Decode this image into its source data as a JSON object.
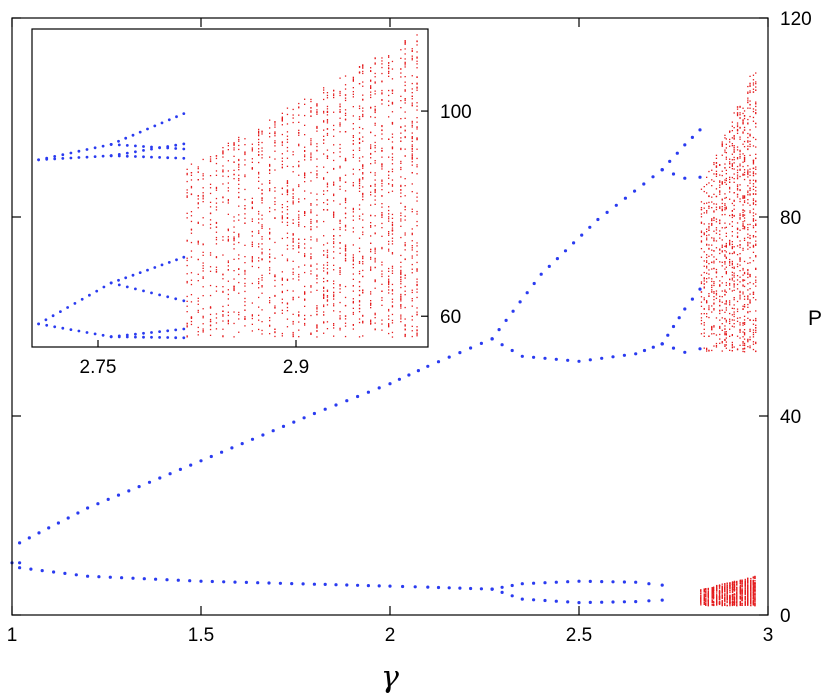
{
  "chart_data": [
    {
      "type": "scatter",
      "title": "",
      "xlabel": "γ",
      "ylabel": "P",
      "xlim": [
        1,
        3
      ],
      "ylim": [
        0,
        120
      ],
      "x_ticks": [
        "1",
        "1.5",
        "2",
        "2.5",
        "3"
      ],
      "y_ticks": [
        "0",
        "40",
        "80",
        "120"
      ],
      "y_axis_side": "right",
      "grid": false,
      "legend": "none",
      "colors": {
        "periodic": "#2a3bf0",
        "chaotic": "#e41a1c"
      },
      "series": [
        {
          "style": "periodic-blue-dots",
          "branches": [
            {
              "x": [
                1.0,
                1.02
              ],
              "y": [
                10.5,
                10.5
              ]
            },
            {
              "x": [
                1.02,
                1.2,
                1.5,
                1.8,
                2.0,
                2.1,
                2.27
              ],
              "y": [
                14.5,
                21.5,
                31.0,
                40.5,
                46.5,
                50.0,
                55.5
              ]
            },
            {
              "x": [
                1.02,
                1.2,
                1.5,
                1.8,
                2.0,
                2.1,
                2.27
              ],
              "y": [
                9.5,
                7.8,
                6.8,
                6.2,
                5.8,
                5.6,
                5.2
              ]
            },
            {
              "x": [
                2.27,
                2.4,
                2.55,
                2.72
              ],
              "y": [
                55.5,
                68.5,
                79.5,
                89.5
              ]
            },
            {
              "x": [
                2.27,
                2.35,
                2.5,
                2.65,
                2.72
              ],
              "y": [
                55.5,
                52.0,
                51.0,
                52.5,
                54.5
              ]
            },
            {
              "x": [
                2.72,
                2.78,
                2.82
              ],
              "y": [
                89.5,
                94.5,
                97.5
              ]
            },
            {
              "x": [
                2.72,
                2.78,
                2.82
              ],
              "y": [
                89.5,
                87.8,
                88.0
              ]
            },
            {
              "x": [
                2.72,
                2.78,
                2.82
              ],
              "y": [
                54.5,
                61.5,
                65.5
              ]
            },
            {
              "x": [
                2.72,
                2.78,
                2.82
              ],
              "y": [
                54.5,
                52.8,
                53.5
              ]
            },
            {
              "x": [
                2.27,
                2.35,
                2.5,
                2.65,
                2.72
              ],
              "y": [
                5.2,
                6.3,
                6.8,
                6.6,
                6.0
              ]
            },
            {
              "x": [
                2.27,
                2.35,
                2.5,
                2.65,
                2.72
              ],
              "y": [
                5.2,
                3.2,
                2.5,
                2.7,
                3.0
              ]
            }
          ]
        },
        {
          "style": "chaotic-red-points",
          "bands": [
            {
              "x_range": [
                2.82,
                2.97
              ],
              "y_range": [
                53,
                112
              ]
            },
            {
              "x_range": [
                2.82,
                2.97
              ],
              "y_range": [
                2,
                8
              ]
            }
          ]
        }
      ]
    },
    {
      "type": "scatter",
      "title": "",
      "xlabel": "",
      "ylabel": "",
      "xlim": [
        2.7,
        3.0
      ],
      "ylim": [
        54,
        116
      ],
      "x_ticks": [
        "2.75",
        "2.9"
      ],
      "y_ticks": [
        "60",
        "100"
      ],
      "y_axis_side": "right",
      "grid": false,
      "legend": "none",
      "colors": {
        "periodic": "#2a3bf0",
        "chaotic": "#e41a1c"
      },
      "series": [
        {
          "style": "periodic-blue-dots",
          "branches": [
            {
              "x": [
                2.705,
                2.76
              ],
              "y": [
                90.5,
                93.5
              ]
            },
            {
              "x": [
                2.705,
                2.76
              ],
              "y": [
                90.5,
                91.3
              ]
            },
            {
              "x": [
                2.76,
                2.815
              ],
              "y": [
                93.5,
                99.5
              ]
            },
            {
              "x": [
                2.76,
                2.815
              ],
              "y": [
                93.5,
                92.6
              ]
            },
            {
              "x": [
                2.76,
                2.815
              ],
              "y": [
                91.3,
                93.6
              ]
            },
            {
              "x": [
                2.76,
                2.815
              ],
              "y": [
                91.3,
                90.8
              ]
            },
            {
              "x": [
                2.705,
                2.76
              ],
              "y": [
                58.5,
                66.5
              ]
            },
            {
              "x": [
                2.705,
                2.76
              ],
              "y": [
                58.5,
                56.0
              ]
            },
            {
              "x": [
                2.76,
                2.815
              ],
              "y": [
                66.5,
                71.5
              ]
            },
            {
              "x": [
                2.76,
                2.815
              ],
              "y": [
                66.5,
                63.0
              ]
            },
            {
              "x": [
                2.76,
                2.815
              ],
              "y": [
                56.0,
                57.5
              ]
            },
            {
              "x": [
                2.76,
                2.815
              ],
              "y": [
                56.0,
                55.8
              ]
            }
          ]
        },
        {
          "style": "chaotic-red-points",
          "bands": [
            {
              "x_range": [
                2.815,
                2.995
              ],
              "y_range": [
                56,
                116
              ]
            }
          ]
        }
      ]
    }
  ]
}
